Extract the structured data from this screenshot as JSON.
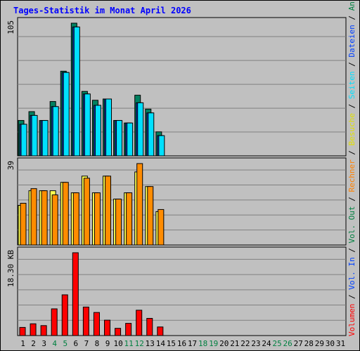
{
  "title": "Tages-Statistik im Monat April 2026",
  "legend": {
    "volumen": "Volumen",
    "vol_in": "Vol. In",
    "vol_out": "Vol. Out",
    "rechner": "Rechner",
    "besuche": "Besuche",
    "seiten": "Seiten",
    "dateien": "Dateien",
    "anfragen": "Anfragen",
    "sep": " / "
  },
  "colors": {
    "anfragen": "#008040",
    "dateien": "#0040ff",
    "seiten": "#00e0ff",
    "besuche": "#ffff00",
    "rechner": "#ff8000",
    "vol_out": "#008040",
    "vol_in": "#0040ff",
    "volumen": "#ff0000",
    "weekend": "#008040",
    "title": "#0000ff"
  },
  "chart_data": [
    {
      "type": "bar",
      "name": "hits",
      "ymax_label": "105",
      "ylim": [
        0,
        105
      ],
      "x": [
        1,
        2,
        3,
        4,
        5,
        6,
        7,
        8,
        9,
        10,
        11,
        12,
        13,
        14,
        15,
        16,
        17,
        18,
        19,
        20,
        21,
        22,
        23,
        24,
        25,
        26,
        27,
        28,
        29,
        30,
        31
      ],
      "series": [
        {
          "name": "Anfragen",
          "values": [
            28,
            35,
            28,
            43,
            67,
            105,
            51,
            44,
            45,
            28,
            26,
            48,
            37,
            19,
            0,
            0,
            0,
            0,
            0,
            0,
            0,
            0,
            0,
            0,
            0,
            0,
            0,
            0,
            0,
            0,
            0
          ]
        },
        {
          "name": "Dateien",
          "values": [
            25,
            32,
            28,
            39,
            66,
            102,
            49,
            40,
            45,
            28,
            26,
            42,
            34,
            16,
            0,
            0,
            0,
            0,
            0,
            0,
            0,
            0,
            0,
            0,
            0,
            0,
            0,
            0,
            0,
            0,
            0
          ]
        },
        {
          "name": "Seiten",
          "values": [
            25,
            32,
            28,
            39,
            66,
            102,
            49,
            40,
            45,
            28,
            26,
            42,
            34,
            16,
            0,
            0,
            0,
            0,
            0,
            0,
            0,
            0,
            0,
            0,
            0,
            0,
            0,
            0,
            0,
            0,
            0
          ]
        }
      ]
    },
    {
      "type": "bar",
      "name": "visits",
      "ymax_label": "39",
      "ylim": [
        0,
        39
      ],
      "x": [
        1,
        2,
        3,
        4,
        5,
        6,
        7,
        8,
        9,
        10,
        11,
        12,
        13,
        14,
        15,
        16,
        17,
        18,
        19,
        20,
        21,
        22,
        23,
        24,
        25,
        26,
        27,
        28,
        29,
        30,
        31
      ],
      "series": [
        {
          "name": "Besuche",
          "values": [
            19,
            26,
            26,
            26,
            30,
            25,
            33,
            25,
            33,
            22,
            25,
            35,
            28,
            16,
            0,
            0,
            0,
            0,
            0,
            0,
            0,
            0,
            0,
            0,
            0,
            0,
            0,
            0,
            0,
            0,
            0
          ]
        },
        {
          "name": "Rechner",
          "values": [
            20,
            27,
            26,
            24,
            30,
            25,
            32,
            25,
            33,
            22,
            25,
            39,
            28,
            17,
            0,
            0,
            0,
            0,
            0,
            0,
            0,
            0,
            0,
            0,
            0,
            0,
            0,
            0,
            0,
            0,
            0
          ]
        }
      ]
    },
    {
      "type": "bar",
      "name": "volume",
      "ymax_label": "18.30 KB",
      "ylim": [
        0,
        18.3
      ],
      "x": [
        1,
        2,
        3,
        4,
        5,
        6,
        7,
        8,
        9,
        10,
        11,
        12,
        13,
        14,
        15,
        16,
        17,
        18,
        19,
        20,
        21,
        22,
        23,
        24,
        25,
        26,
        27,
        28,
        29,
        30,
        31
      ],
      "series": [
        {
          "name": "Volumen",
          "values": [
            1.8,
            2.6,
            2.2,
            5.9,
            9.0,
            18.3,
            6.3,
            5.1,
            3.4,
            1.6,
            2.7,
            5.6,
            3.8,
            1.9,
            0,
            0,
            0,
            0,
            0,
            0,
            0,
            0,
            0,
            0,
            0,
            0,
            0,
            0,
            0,
            0,
            0
          ]
        }
      ]
    }
  ],
  "x_labels": [
    "1",
    "2",
    "3",
    "4",
    "5",
    "6",
    "7",
    "8",
    "9",
    "10",
    "11",
    "12",
    "13",
    "14",
    "15",
    "16",
    "17",
    "18",
    "19",
    "20",
    "21",
    "22",
    "23",
    "24",
    "25",
    "26",
    "27",
    "28",
    "29",
    "30",
    "31"
  ],
  "weekend_days": [
    4,
    5,
    11,
    12,
    18,
    19,
    25,
    26
  ]
}
